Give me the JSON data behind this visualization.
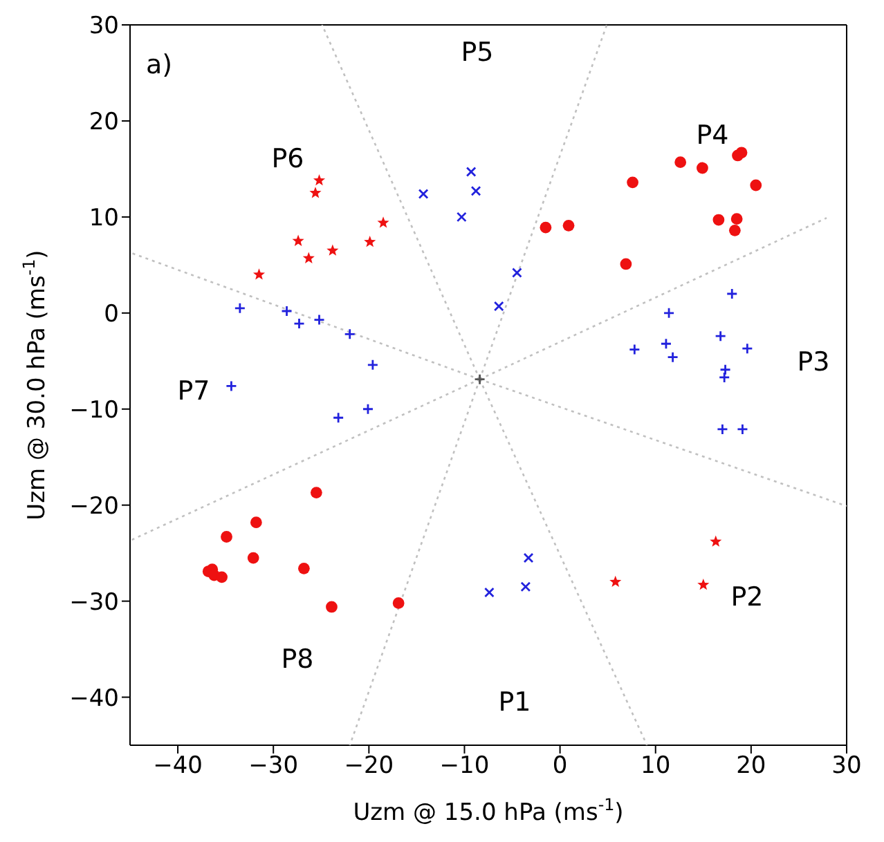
{
  "chart_data": {
    "type": "scatter",
    "xlabel": "Uzm @ 15.0 hPa (ms$^{-1}$)",
    "ylabel": "Uzm @ 30.0 hPa (ms$^{-1}$)",
    "xlim": [
      -45,
      30
    ],
    "xticks": [
      -40,
      -30,
      -20,
      -10,
      0,
      10,
      20,
      30
    ],
    "ylim": [
      -45,
      30
    ],
    "yticks": [
      -40,
      -30,
      -20,
      -10,
      0,
      10,
      20,
      30
    ],
    "annotations": [
      "a)",
      "P1",
      "P2",
      "P3",
      "P4",
      "P5",
      "P6",
      "P7",
      "P8"
    ],
    "series": [
      {
        "type": "line",
        "color": "#c0c0c0",
        "line_style": "dotted",
        "marker": "none",
        "x": [
          -8.4,
          -24.9
        ],
        "values": [
          -6.9,
          30
        ]
      },
      {
        "type": "line",
        "color": "#c0c0c0",
        "line_style": "dotted",
        "marker": "none",
        "x": [
          -8.4,
          4.9
        ],
        "values": [
          -6.9,
          30
        ]
      },
      {
        "type": "line",
        "color": "#c0c0c0",
        "line_style": "dotted",
        "marker": "none",
        "x": [
          -8.4,
          27.9
        ],
        "values": [
          -6.9,
          9.9
        ]
      },
      {
        "type": "line",
        "color": "#c0c0c0",
        "line_style": "dotted",
        "marker": "none",
        "x": [
          -8.4,
          30
        ],
        "values": [
          -6.9,
          -20.1
        ]
      },
      {
        "type": "line",
        "color": "#c0c0c0",
        "line_style": "dotted",
        "marker": "none",
        "x": [
          -8.4,
          9.1
        ],
        "values": [
          -6.9,
          -45
        ]
      },
      {
        "type": "line",
        "color": "#c0c0c0",
        "line_style": "dotted",
        "marker": "none",
        "x": [
          -8.4,
          -22
        ],
        "values": [
          -6.9,
          -45
        ]
      },
      {
        "type": "line",
        "color": "#c0c0c0",
        "line_style": "dotted",
        "marker": "none",
        "x": [
          -8.4,
          -45
        ],
        "values": [
          -6.9,
          -23.7
        ]
      },
      {
        "type": "line",
        "color": "#c0c0c0",
        "line_style": "dotted",
        "marker": "none",
        "x": [
          -8.4,
          -45
        ],
        "values": [
          -6.9,
          6.3
        ]
      },
      {
        "marker": "circle",
        "color": "#ee1111",
        "x": [
          -1.5,
          0.9,
          7.6,
          12.6,
          14.9,
          18.6,
          19.0,
          20.5,
          16.6,
          18.5,
          18.3,
          6.9,
          -25.5,
          -31.8,
          -34.9,
          -32.1,
          -26.8,
          -36.8,
          -36.4,
          -36.2,
          -35.4,
          -23.9,
          -16.9
        ],
        "values": [
          8.9,
          9.1,
          13.6,
          15.7,
          15.1,
          16.4,
          16.7,
          13.3,
          9.7,
          9.8,
          8.6,
          5.1,
          -18.7,
          -21.8,
          -23.3,
          -25.5,
          -26.6,
          -26.9,
          -26.7,
          -27.3,
          -27.5,
          -30.6,
          -30.2
        ]
      },
      {
        "marker": "star",
        "color": "#ee1111",
        "x": [
          -25.2,
          -25.6,
          -18.5,
          -27.4,
          -19.9,
          -23.8,
          -26.3,
          -31.5,
          16.3,
          5.8,
          15.0
        ],
        "values": [
          13.8,
          12.5,
          9.4,
          7.5,
          7.4,
          6.5,
          5.7,
          4.0,
          -23.8,
          -28.0,
          -28.3
        ]
      },
      {
        "marker": "x",
        "color": "#2222dd",
        "x": [
          -14.3,
          -9.3,
          -8.8,
          -10.3,
          -6.4,
          -4.5,
          -3.3,
          -3.6,
          -7.4
        ],
        "values": [
          12.4,
          14.7,
          12.7,
          10.0,
          0.7,
          4.2,
          -25.5,
          -28.5,
          -29.1
        ]
      },
      {
        "marker": "cross",
        "color": "#2222dd",
        "x": [
          -33.5,
          -28.6,
          -27.3,
          -25.2,
          -22.0,
          -19.6,
          -34.4,
          -23.2,
          -20.1,
          18.0,
          11.4,
          7.8,
          11.1,
          11.8,
          16.8,
          19.6,
          17.3,
          17.2,
          17.0,
          19.1
        ],
        "values": [
          0.5,
          0.2,
          -1.1,
          -0.7,
          -2.2,
          -5.4,
          -7.6,
          -10.9,
          -10.0,
          2.0,
          0.0,
          -3.8,
          -3.2,
          -4.6,
          -2.4,
          -3.7,
          -5.9,
          -6.7,
          -12.1,
          -12.1
        ]
      },
      {
        "marker": "cross",
        "color": "#555555",
        "x": [
          -8.4
        ],
        "values": [
          -6.9
        ]
      }
    ]
  }
}
